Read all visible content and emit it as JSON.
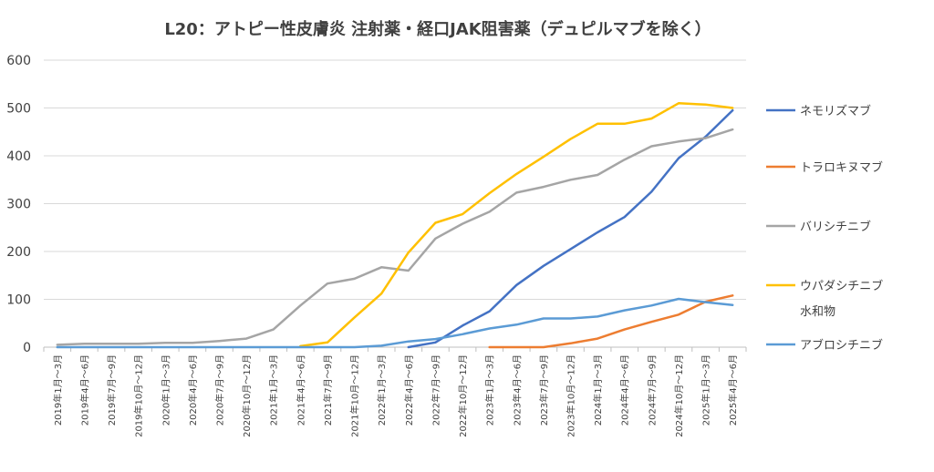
{
  "chart_data": {
    "type": "line",
    "title": "L20：アトピー性皮膚炎 注射薬・経口JAK阻害薬（デュピルマブを除く）",
    "xlabel": "",
    "ylabel": "",
    "ylim": [
      0,
      600
    ],
    "yticks": [
      0,
      100,
      200,
      300,
      400,
      500,
      600
    ],
    "grid": true,
    "legend_position": "right",
    "categories": [
      "2019年1月～3月",
      "2019年4月～6月",
      "2019年7月～9月",
      "2019年10月～12月",
      "2020年1月～3月",
      "2020年4月～6月",
      "2020年7月～9月",
      "2020年10月～12月",
      "2021年1月～3月",
      "2021年4月～6月",
      "2021年7月～9月",
      "2021年10月～12月",
      "2022年1月～3月",
      "2022年4月～6月",
      "2022年7月～9月",
      "2022年10月～12月",
      "2023年1月～3月",
      "2023年4月～6月",
      "2023年7月～9月",
      "2023年10月～12月",
      "2024年1月～3月",
      "2024年4月～6月",
      "2024年7月～9月",
      "2024年10月～12月",
      "2025年1月～3月",
      "2025年4月～6月"
    ],
    "series": [
      {
        "name": "ネモリズマブ",
        "legend_lines": [
          "ネモリズマブ"
        ],
        "color": "#4472C4",
        "values": [
          null,
          null,
          null,
          null,
          null,
          null,
          null,
          null,
          null,
          null,
          null,
          null,
          null,
          0,
          10,
          45,
          75,
          130,
          170,
          205,
          240,
          272,
          325,
          395,
          440,
          495
        ]
      },
      {
        "name": "トラロキヌマブ",
        "legend_lines": [
          "トラロキヌマブ"
        ],
        "color": "#ED7D31",
        "values": [
          null,
          null,
          null,
          null,
          null,
          null,
          null,
          null,
          null,
          null,
          null,
          null,
          null,
          null,
          null,
          null,
          0,
          0,
          0,
          8,
          18,
          37,
          53,
          68,
          95,
          108
        ]
      },
      {
        "name": "バリシチニブ",
        "legend_lines": [
          "バリシチニブ"
        ],
        "color": "#A5A5A5",
        "values": [
          5,
          7,
          7,
          7,
          9,
          9,
          13,
          18,
          37,
          87,
          133,
          143,
          167,
          160,
          227,
          258,
          283,
          323,
          335,
          350,
          360,
          392,
          420,
          430,
          437,
          455
        ]
      },
      {
        "name": "ウパダシチニブ水和物",
        "legend_lines": [
          "ウパダシチニブ",
          "水和物"
        ],
        "color": "#FFC000",
        "values": [
          null,
          null,
          null,
          null,
          null,
          null,
          null,
          null,
          null,
          2,
          10,
          62,
          112,
          198,
          260,
          278,
          322,
          362,
          398,
          435,
          467,
          467,
          478,
          510,
          507,
          500
        ]
      },
      {
        "name": "アブロシチニブ",
        "legend_lines": [
          "アブロシチニブ"
        ],
        "color": "#5B9BD5",
        "values": [
          0,
          0,
          0,
          0,
          0,
          0,
          0,
          0,
          0,
          0,
          0,
          0,
          3,
          12,
          17,
          27,
          39,
          47,
          60,
          60,
          64,
          77,
          87,
          101,
          94,
          88
        ]
      }
    ]
  }
}
